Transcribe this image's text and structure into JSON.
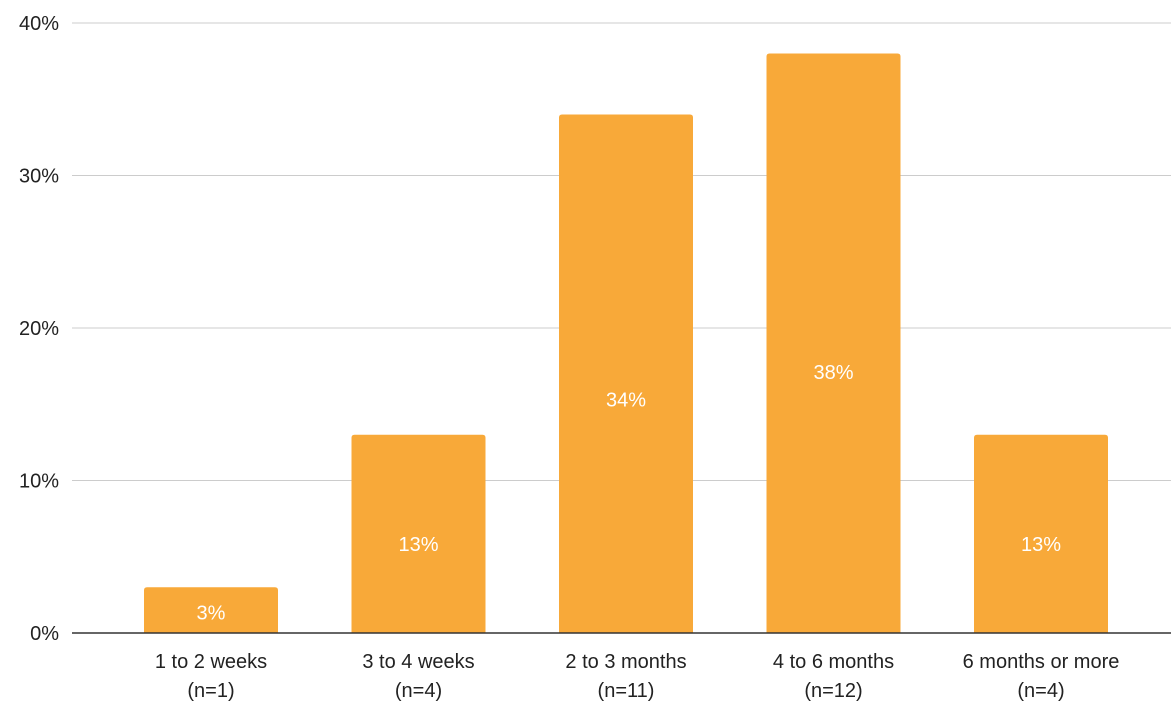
{
  "chart_data": {
    "type": "bar",
    "title": "",
    "xlabel": "",
    "ylabel": "",
    "categories": [
      [
        "1 to 2 weeks",
        "(n=1)"
      ],
      [
        "3 to 4 weeks",
        "(n=4)"
      ],
      [
        "2 to 3 months",
        "(n=11)"
      ],
      [
        "4 to 6 months",
        "(n=12)"
      ],
      [
        "6 months or more",
        "(n=4)"
      ]
    ],
    "values": [
      3,
      13,
      34,
      38,
      13
    ],
    "data_labels": [
      "3%",
      "13%",
      "34%",
      "38%",
      "13%"
    ],
    "ylim": [
      0,
      40
    ],
    "y_ticks": [
      0,
      10,
      20,
      30,
      40
    ],
    "y_tick_labels": [
      "0%",
      "10%",
      "20%",
      "30%",
      "40%"
    ],
    "grid": true,
    "legend": "none",
    "bar_color": "#F8A939",
    "label_color": "#FFFFFF",
    "grid_color": "#CCCCCC",
    "axis_color": "#333333"
  }
}
